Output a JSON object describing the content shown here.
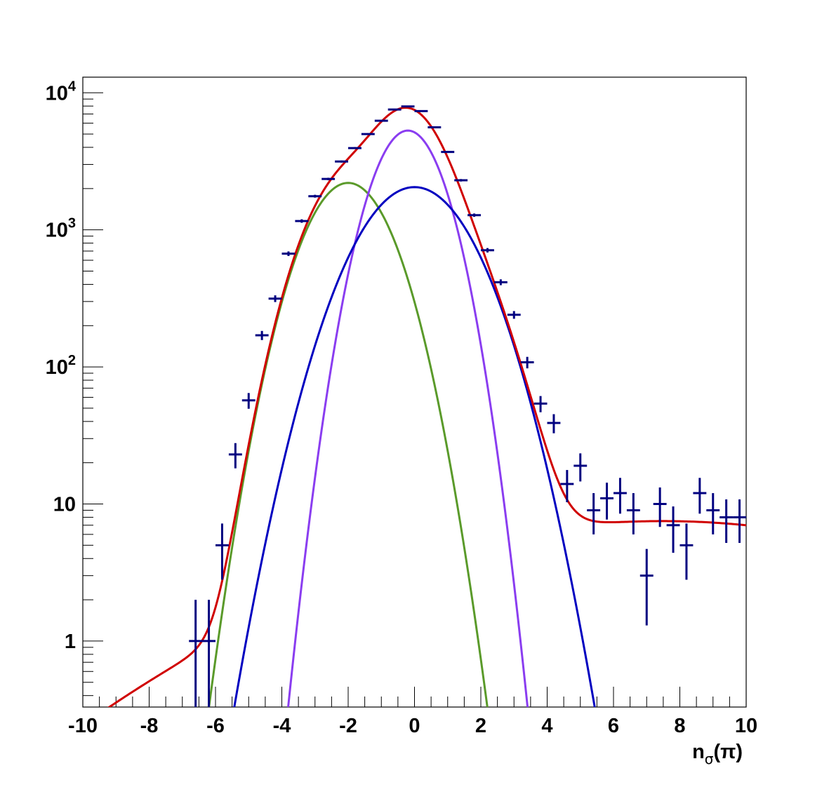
{
  "chart_data": {
    "type": "scatter",
    "title": "",
    "xlabel": "n_σ(π)",
    "xlabel_main": "n",
    "xlabel_sub": "σ",
    "xlabel_paren": "(π)",
    "ylabel": "",
    "xlim": [
      -10,
      10
    ],
    "ylim": [
      0.33,
      13000
    ],
    "y_scale": "log",
    "grid": false,
    "legend": "none",
    "x_ticks": [
      -10,
      -8,
      -6,
      -4,
      -2,
      0,
      2,
      4,
      6,
      8,
      10
    ],
    "x_tick_labels": [
      "-10",
      "-8",
      "-6",
      "-4",
      "-2",
      "0",
      "2",
      "4",
      "6",
      "8",
      "10"
    ],
    "y_ticks": [
      1,
      10,
      100,
      1000,
      10000
    ],
    "y_tick_labels": [
      {
        "value": 1,
        "base": "1",
        "exp": ""
      },
      {
        "value": 10,
        "base": "10",
        "exp": ""
      },
      {
        "value": 100,
        "base": "10",
        "exp": "2"
      },
      {
        "value": 1000,
        "base": "10",
        "exp": "3"
      },
      {
        "value": 10000,
        "base": "10",
        "exp": "4"
      }
    ],
    "bin_width": 0.4,
    "points": {
      "color": "#000080",
      "x": [
        -6.6,
        -6.2,
        -5.8,
        -5.4,
        -5.0,
        -4.6,
        -4.2,
        -3.8,
        -3.4,
        -3.0,
        -2.6,
        -2.2,
        -1.8,
        -1.4,
        -1.0,
        -0.6,
        -0.2,
        0.2,
        0.6,
        1.0,
        1.4,
        1.8,
        2.2,
        2.6,
        3.0,
        3.4,
        3.8,
        4.2,
        4.6,
        5.0,
        5.4,
        5.8,
        6.2,
        6.6,
        7.0,
        7.4,
        7.8,
        8.2,
        8.6,
        9.0,
        9.4,
        9.8
      ],
      "y": [
        1,
        1,
        5,
        23,
        57,
        170,
        315,
        670,
        1160,
        1760,
        2350,
        3150,
        3950,
        5000,
        6250,
        7550,
        7950,
        7350,
        5600,
        3700,
        2300,
        1280,
        710,
        415,
        240,
        108,
        54,
        39,
        14,
        19,
        9,
        11,
        12,
        9,
        3,
        10,
        7,
        5,
        12,
        9,
        8,
        8
      ],
      "err_lo": [
        1.0,
        1.0,
        2.2,
        4.8,
        7.5,
        13,
        17.7,
        25.9,
        34,
        42,
        48.5,
        56,
        63,
        70.7,
        79,
        86.9,
        89.2,
        85.7,
        74.8,
        60.8,
        48,
        35.8,
        26.6,
        20.4,
        15.5,
        10.4,
        7.3,
        6.2,
        3.7,
        4.4,
        3.0,
        3.3,
        3.5,
        3.0,
        1.7,
        3.2,
        2.6,
        2.2,
        3.5,
        3.0,
        2.8,
        2.8
      ],
      "err_hi": [
        1.0,
        1.0,
        2.2,
        4.8,
        7.5,
        13,
        17.7,
        25.9,
        34,
        42,
        48.5,
        56,
        63,
        70.7,
        79,
        86.9,
        89.2,
        85.7,
        74.8,
        60.8,
        48,
        35.8,
        26.6,
        20.4,
        15.5,
        10.4,
        7.3,
        6.2,
        3.7,
        4.4,
        3.0,
        3.3,
        3.5,
        3.0,
        1.7,
        3.2,
        2.6,
        2.2,
        3.5,
        3.0,
        2.8,
        2.8
      ]
    },
    "series": [
      {
        "color": "#5a9a2a",
        "kind": "gaussian",
        "amplitude": 2200,
        "mean": -2.0,
        "sigma": 1.0
      },
      {
        "color": "#8a3df0",
        "kind": "gaussian",
        "amplitude": 5300,
        "mean": -0.2,
        "sigma": 0.82
      },
      {
        "color": "#0000c0",
        "kind": "gaussian",
        "amplitude": 2050,
        "mean": 0.0,
        "sigma": 1.3
      },
      {
        "color": "#d00000",
        "kind": "sum",
        "background": {
          "a": 7.5,
          "b": -0.35,
          "center": 7.5
        }
      }
    ]
  }
}
